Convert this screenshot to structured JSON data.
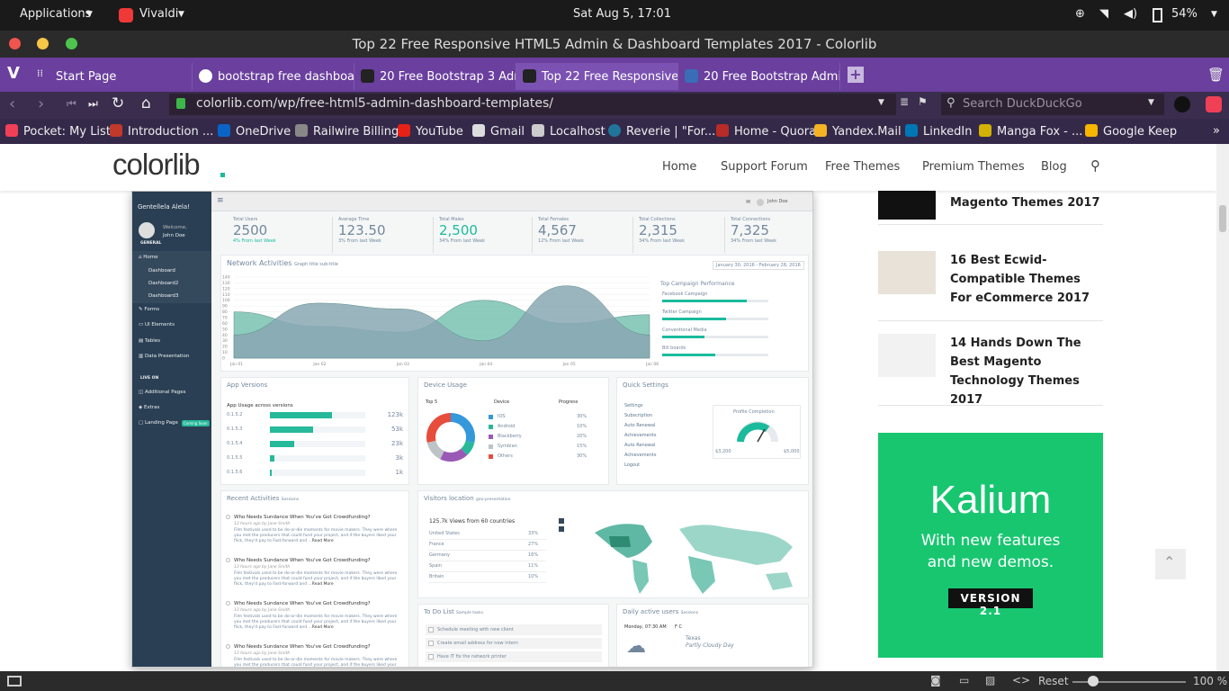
{
  "system": {
    "applications": "Applications",
    "browser": "Vivaldi",
    "clock": "Sat Aug  5, 17:01",
    "battery": "54%"
  },
  "window": {
    "title": "Top 22 Free Responsive HTML5 Admin & Dashboard Templates 2017 - Colorlib"
  },
  "tabs": [
    {
      "label": "Start Page"
    },
    {
      "label": "bootstrap free dashboard"
    },
    {
      "label": "20 Free Bootstrap 3 Admin"
    },
    {
      "label": "Top 22 Free Responsive HT"
    },
    {
      "label": "20 Free Bootstrap Admin &"
    }
  ],
  "address": {
    "url": "colorlib.com/wp/free-html5-admin-dashboard-templates/",
    "search_placeholder": "Search DuckDuckGo"
  },
  "bookmarks": [
    {
      "label": "Pocket: My List",
      "color": "#ef4056"
    },
    {
      "label": "Introduction ...",
      "color": "#c0392b"
    },
    {
      "label": "OneDrive",
      "color": "#0a64c8"
    },
    {
      "label": "Railwire Billing",
      "color": "#888888"
    },
    {
      "label": "YouTube",
      "color": "#e62117"
    },
    {
      "label": "Gmail",
      "color": "#dddddd"
    },
    {
      "label": "Localhost",
      "color": "#cccccc"
    },
    {
      "label": "Reverie | \"For...",
      "color": "#21759b"
    },
    {
      "label": "Home - Quora",
      "color": "#b92b27"
    },
    {
      "label": "Yandex.Mail",
      "color": "#f5b324"
    },
    {
      "label": "LinkedIn",
      "color": "#0077b5"
    },
    {
      "label": "Manga Fox - ...",
      "color": "#d4b106"
    },
    {
      "label": "Google Keep",
      "color": "#f7b500"
    }
  ],
  "site": {
    "logo": "colorlib",
    "nav": [
      "Home",
      "Support Forum",
      "Free Themes",
      "Premium Themes",
      "Blog"
    ]
  },
  "dashboard": {
    "brand": "Gentellela Alela!",
    "welcome": "Welcome,",
    "user": "John Doe",
    "section_general": "GENERAL",
    "menu": [
      "Home",
      "Dashboard",
      "Dashboard2",
      "Dashboard3",
      "Forms",
      "UI Elements",
      "Tables",
      "Data Presentation"
    ],
    "section_live": "LIVE ON",
    "menu2": [
      "Additional Pages",
      "Extras",
      "Landing Page"
    ],
    "coming_soon": "Coming Soon",
    "stats": [
      {
        "label": "Total Users",
        "value": "2500",
        "sub": "4% From last Week"
      },
      {
        "label": "Average Time",
        "value": "123.50",
        "sub": "3% From last Week"
      },
      {
        "label": "Total Males",
        "value": "2,500",
        "sub": "34% From last Week"
      },
      {
        "label": "Total Females",
        "value": "4,567",
        "sub": "12% From last Week"
      },
      {
        "label": "Total Collections",
        "value": "2,315",
        "sub": "34% From last Week"
      },
      {
        "label": "Total Connections",
        "value": "7,325",
        "sub": "34% From last Week"
      }
    ],
    "network_title": "Network Activities",
    "network_sub": "Graph title sub-title",
    "date_range": "January 30, 2016 - February 28, 2016",
    "x_ticks": [
      "Jan 01",
      "Jan 02",
      "Jan 03",
      "Jan 04",
      "Jan 05",
      "Jan 06"
    ],
    "y_ticks": [
      "140",
      "130",
      "120",
      "110",
      "100",
      "90",
      "80",
      "70",
      "60",
      "50",
      "40",
      "30",
      "20",
      "10",
      "0"
    ],
    "campaign_title": "Top Campaign Performance",
    "campaigns": [
      {
        "label": "Facebook Campaign",
        "pct": 80
      },
      {
        "label": "Twitter Campaign",
        "pct": 60
      },
      {
        "label": "Conventional Media",
        "pct": 40
      },
      {
        "label": "Bill boards",
        "pct": 50
      }
    ],
    "app_title": "App Versions",
    "app_sub": "App Usage across versions",
    "apps": [
      {
        "label": "0.1.5.2",
        "val": "123k",
        "pct": 65
      },
      {
        "label": "0.1.5.3",
        "val": "53k",
        "pct": 45
      },
      {
        "label": "0.1.5.4",
        "val": "23k",
        "pct": 25
      },
      {
        "label": "0.1.5.5",
        "val": "3k",
        "pct": 5
      },
      {
        "label": "0.1.5.6",
        "val": "1k",
        "pct": 2
      }
    ],
    "device_title": "Device Usage",
    "device_cols": [
      "Top 5",
      "Device",
      "Progress"
    ],
    "devices": [
      {
        "label": "IOS",
        "pct": "30%",
        "color": "#3498db"
      },
      {
        "label": "Android",
        "pct": "10%",
        "color": "#26b99a"
      },
      {
        "label": "Blackberry",
        "pct": "20%",
        "color": "#9b59b6"
      },
      {
        "label": "Symbian",
        "pct": "15%",
        "color": "#bdc3c7"
      },
      {
        "label": "Others",
        "pct": "30%",
        "color": "#e74c3c"
      }
    ],
    "quick_title": "Quick Settings",
    "quick": [
      "Settings",
      "Subscription",
      "Auto Renewal",
      "Achievements",
      "Auto Renewal",
      "Achievements",
      "Logout"
    ],
    "profile_title": "Profile Completion",
    "profile_min": "$3,200",
    "profile_max": "$5,000",
    "recent_title": "Recent Activities",
    "recent_sub": "Sessions",
    "recent_items": [
      {
        "title": "Who Needs Sundance When You've Got Crowdfunding?",
        "meta": "13 hours ago by Jane Smith"
      },
      {
        "title": "Who Needs Sundance When You've Got Crowdfunding?",
        "meta": "13 hours ago by Jane Smith"
      },
      {
        "title": "Who Needs Sundance When You've Got Crowdfunding?",
        "meta": "13 hours ago by Jane Smith"
      },
      {
        "title": "Who Needs Sundance When You've Got Crowdfunding?",
        "meta": "13 hours ago by Jane Smith"
      }
    ],
    "recent_body": "Film festivals used to be do-or-die moments for movie makers. They were where you met the producers that could fund your project, and if the buyers liked your flick, they'd pay to Fast-forward and ...",
    "read_more": "Read More",
    "visitors_title": "Visitors location",
    "visitors_sub": "geo-presentation",
    "visitors_views": "125.7k Views from 60 countries",
    "countries": [
      {
        "name": "United States",
        "pct": "33%"
      },
      {
        "name": "France",
        "pct": "27%"
      },
      {
        "name": "Germany",
        "pct": "16%"
      },
      {
        "name": "Spain",
        "pct": "11%"
      },
      {
        "name": "Britain",
        "pct": "10%"
      }
    ],
    "todo_title": "To Do List",
    "todo_sub": "Sample tasks",
    "todos": [
      "Schedule meeting with new client",
      "Create email address for new intern",
      "Have IT fix the network printer"
    ],
    "daily_title": "Daily active users",
    "daily_sub": "Sessions",
    "daily_date": "Monday, 07:30 AM",
    "daily_temp": "F  C",
    "daily_city": "Texas",
    "daily_weather": "Partly Cloudy Day"
  },
  "articles": [
    {
      "title": "Magento Themes 2017"
    },
    {
      "title": "16 Best Ecwid-Compatible Themes For eCommerce 2017"
    },
    {
      "title": "14 Hands Down The Best Magento Technology Themes 2017"
    }
  ],
  "ad": {
    "brand": "Kalium",
    "line1": "With new features",
    "line2": "and new demos.",
    "badge": "VERSION 2.1"
  },
  "status": {
    "reset": "Reset",
    "zoom": "100 %"
  },
  "chart_data": {
    "type": "area",
    "x": [
      "Jan 01",
      "Jan 02",
      "Jan 03",
      "Jan 04",
      "Jan 05",
      "Jan 06"
    ],
    "ylim": [
      0,
      140
    ],
    "series": [
      {
        "values": [
          80,
          55,
          45,
          100,
          60,
          75
        ],
        "color": "#79c2b1"
      },
      {
        "values": [
          40,
          95,
          85,
          30,
          125,
          40
        ],
        "color": "#8aa8b4"
      }
    ]
  }
}
